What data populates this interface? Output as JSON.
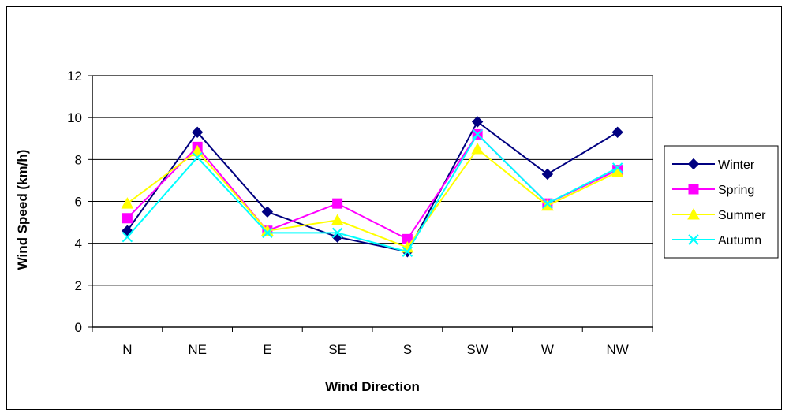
{
  "chart_data": {
    "type": "line",
    "title": "",
    "xlabel": "Wind Direction",
    "ylabel": "Wind Speed (km/h)",
    "categories": [
      "N",
      "NE",
      "E",
      "SE",
      "S",
      "SW",
      "W",
      "NW"
    ],
    "ylim": [
      0,
      12
    ],
    "yticks": [
      "0",
      "2",
      "4",
      "6",
      "8",
      "10",
      "12"
    ],
    "grid": "horizontal",
    "legend_position": "right",
    "series": [
      {
        "name": "Winter",
        "color": "#000080",
        "marker": "diamond",
        "values": [
          4.6,
          9.3,
          5.5,
          4.3,
          3.6,
          9.8,
          7.3,
          9.3
        ]
      },
      {
        "name": "Spring",
        "color": "#ff00ff",
        "marker": "square",
        "values": [
          5.2,
          8.6,
          4.6,
          5.9,
          4.2,
          9.2,
          5.9,
          7.5
        ]
      },
      {
        "name": "Summer",
        "color": "#ffff00",
        "marker": "triangle",
        "values": [
          5.9,
          8.4,
          4.6,
          5.1,
          3.8,
          8.5,
          5.8,
          7.4
        ]
      },
      {
        "name": "Autumn",
        "color": "#00ffff",
        "marker": "x",
        "values": [
          4.3,
          8.1,
          4.5,
          4.5,
          3.6,
          9.2,
          5.9,
          7.6
        ]
      }
    ]
  }
}
